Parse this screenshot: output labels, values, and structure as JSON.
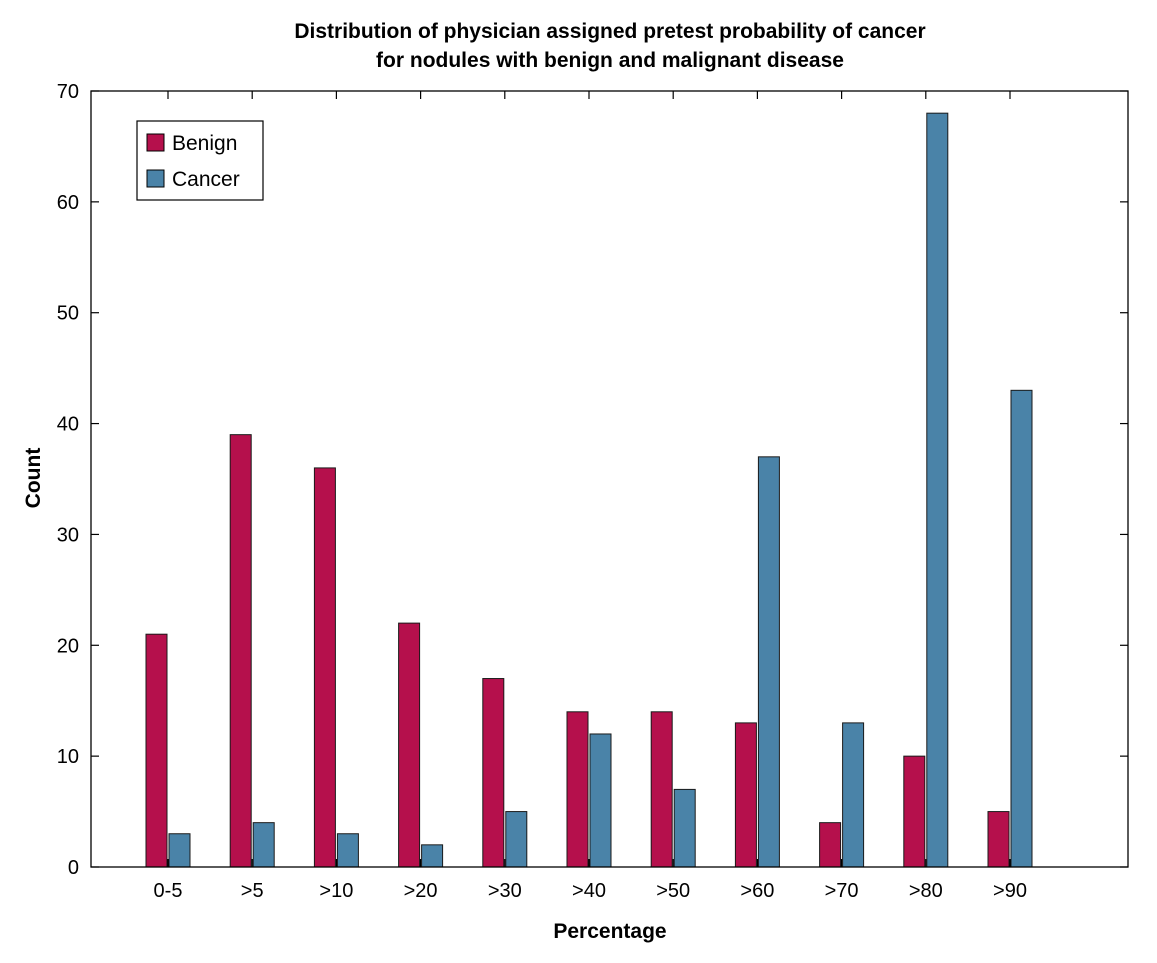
{
  "chart_data": {
    "type": "bar",
    "title_line1": "Distribution of physician assigned pretest probability of cancer",
    "title_line2": "for nodules with benign and malignant disease",
    "xlabel": "Percentage",
    "ylabel": "Count",
    "categories": [
      "0-5",
      ">5",
      ">10",
      ">20",
      ">30",
      ">40",
      ">50",
      ">60",
      ">70",
      ">80",
      ">90"
    ],
    "series": [
      {
        "name": "Benign",
        "color": "#b5104c",
        "values": [
          21,
          39,
          36,
          22,
          17,
          14,
          14,
          13,
          4,
          10,
          5
        ]
      },
      {
        "name": "Cancer",
        "color": "#4a83a8",
        "values": [
          3,
          4,
          3,
          2,
          5,
          12,
          7,
          37,
          13,
          68,
          43
        ]
      }
    ],
    "ylim": [
      0,
      70
    ],
    "yticks": [
      0,
      10,
      20,
      30,
      40,
      50,
      60,
      70
    ],
    "legend_position": "top-left",
    "grid": false
  }
}
